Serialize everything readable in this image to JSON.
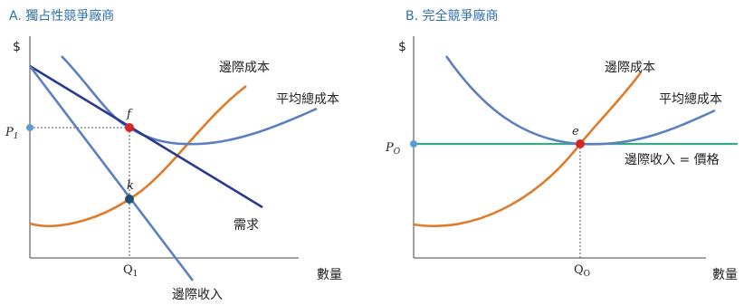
{
  "chart_data": [
    {
      "type": "line",
      "title": "A. 獨占性競爭廠商",
      "ylabel": "$",
      "xlabel": "數量",
      "grid": false,
      "series": [
        {
          "name": "邊際成本",
          "color": "#e07b2a"
        },
        {
          "name": "平均總成本",
          "color": "#5b7fbf"
        },
        {
          "name": "需求",
          "color": "#2b3990"
        },
        {
          "name": "邊際收入",
          "color": "#5b7fbf"
        }
      ],
      "points": [
        {
          "label": "f",
          "color": "#d62728"
        },
        {
          "label": "k",
          "color": "#1f4e6e"
        }
      ],
      "y_tick": {
        "label": "P",
        "subscript": "1",
        "color": "#5b9bd5"
      },
      "x_tick": {
        "label": "Q",
        "subscript": "1"
      }
    },
    {
      "type": "line",
      "title": "B. 完全競爭廠商",
      "ylabel": "$",
      "xlabel": "數量",
      "grid": false,
      "series": [
        {
          "name": "邊際成本",
          "color": "#e07b2a"
        },
        {
          "name": "平均總成本",
          "color": "#5b7fbf"
        },
        {
          "name": "邊際收入 = 價格",
          "color": "#3aa88a"
        }
      ],
      "points": [
        {
          "label": "e",
          "color": "#d62728"
        }
      ],
      "y_tick": {
        "label": "P",
        "subscript": "O",
        "color": "#5b9bd5"
      },
      "x_tick": {
        "label": "Q",
        "subscript": "O"
      }
    }
  ]
}
